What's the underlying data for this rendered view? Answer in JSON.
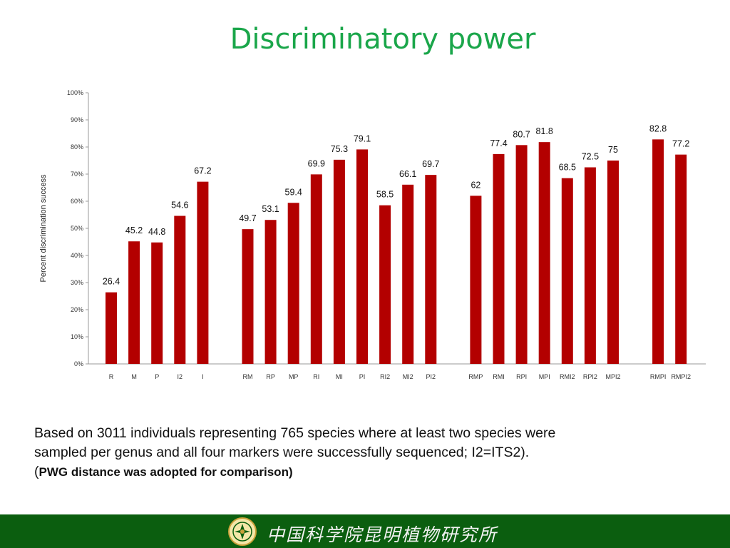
{
  "slide": {
    "title": "Discriminatory power",
    "caption_line1": "Based on 3011 individuals representing 765 species where at least two species were",
    "caption_line2": "sampled per genus and all four markers were successfully sequenced; I2=ITS2).",
    "caption_line3_open": "(",
    "caption_line3_bold": "PWG distance was adopted for comparison)",
    "institution": "中国科学院昆明植物研究所",
    "colors": {
      "title": "#1aa64a",
      "bar": "#b30000",
      "footer": "#0b5e0f"
    },
    "logo_icon": "institute-seal-icon"
  },
  "chart_data": {
    "type": "bar",
    "ylabel": "Percent discrimination success",
    "ylim": [
      0,
      100
    ],
    "yticks": [
      "0%",
      "10%",
      "20%",
      "30%",
      "40%",
      "50%",
      "60%",
      "70%",
      "80%",
      "90%",
      "100%"
    ],
    "grid": false,
    "categories": [
      "R",
      "M",
      "P",
      "I2",
      "I",
      "RM",
      "RP",
      "MP",
      "RI",
      "MI",
      "PI",
      "RI2",
      "MI2",
      "PI2",
      "RMP",
      "RMI",
      "RPI",
      "MPI",
      "RMI2",
      "RPI2",
      "MPI2",
      "RMPI",
      "RMPI2"
    ],
    "values": [
      26.4,
      45.2,
      44.8,
      54.6,
      67.2,
      49.7,
      53.1,
      59.4,
      69.9,
      75.3,
      79.1,
      58.5,
      66.1,
      69.7,
      62,
      77.4,
      80.7,
      81.8,
      68.5,
      72.5,
      75,
      82.8,
      77.2
    ],
    "labels": [
      "26.4",
      "45.2",
      "44.8",
      "54.6",
      "67.2",
      "49.7",
      "53.1",
      "59.4",
      "69.9",
      "75.3",
      "79.1",
      "58.5",
      "66.1",
      "69.7",
      "62",
      "77.4",
      "80.7",
      "81.8",
      "68.5",
      "72.5",
      "75",
      "82.8",
      "77.2"
    ],
    "groups": [
      5,
      9,
      7,
      2
    ]
  }
}
